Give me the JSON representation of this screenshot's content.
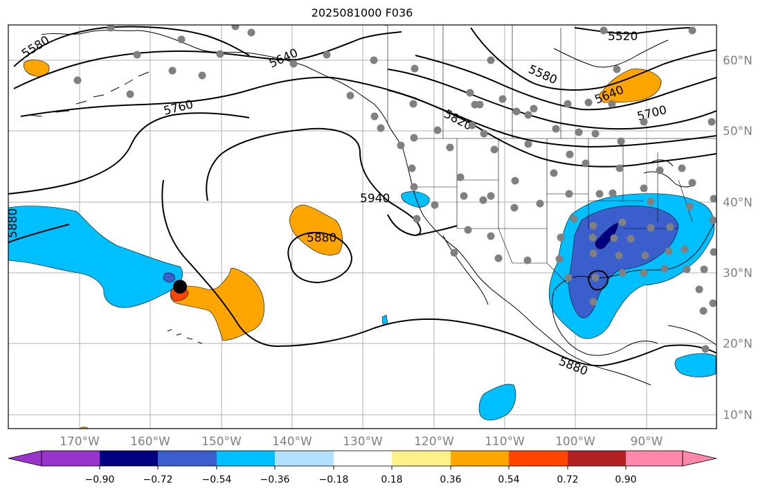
{
  "title": "2025081000 F036",
  "map": {
    "lon_range": [
      -180,
      -80
    ],
    "lat_range": [
      8,
      65
    ],
    "lon_ticks": [
      "170°W",
      "160°W",
      "150°W",
      "140°W",
      "130°W",
      "120°W",
      "110°W",
      "100°W",
      "90°W"
    ],
    "lat_ticks": [
      "10°N",
      "20°N",
      "30°N",
      "40°N",
      "50°N",
      "60°N"
    ],
    "contour_labels": [
      "5580",
      "5640",
      "5520",
      "5580",
      "5760",
      "5640",
      "5700",
      "5820",
      "5940",
      "5880",
      "5880",
      "5880"
    ],
    "colors": {
      "c1": "#9933cc",
      "c2": "#000080",
      "c3": "#3a5fcd",
      "c4": "#00bfff",
      "c5": "#b0e2ff",
      "c6": "#ffffff",
      "c7": "#fff08a",
      "c8": "#ffa500",
      "c9": "#ff4500",
      "c10": "#b22222",
      "c11": "#ff88aa",
      "grid": "#aaaaaa",
      "contour": "#000000",
      "station": "#808080"
    }
  },
  "colorbar": {
    "ticks": [
      "−0.90",
      "−0.72",
      "−0.54",
      "−0.36",
      "−0.18",
      "0.18",
      "0.36",
      "0.54",
      "0.72",
      "0.90"
    ],
    "colors": [
      "#9933cc",
      "#000080",
      "#3a5fcd",
      "#00bfff",
      "#b0e2ff",
      "#ffffff",
      "#fff08a",
      "#ffa500",
      "#ff4500",
      "#b22222",
      "#ff88aa"
    ]
  }
}
